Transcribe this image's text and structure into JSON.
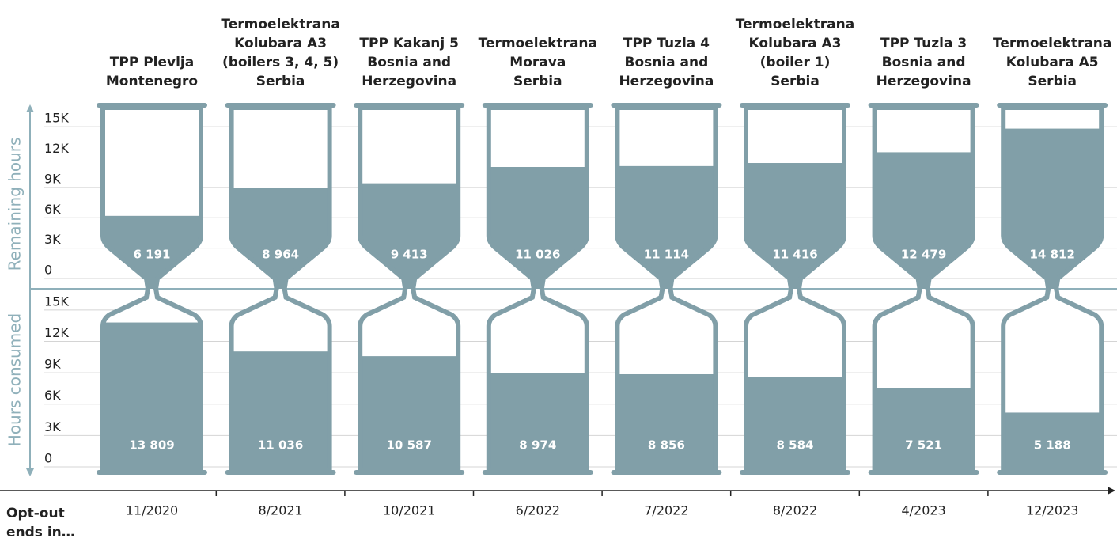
{
  "chart_data": {
    "type": "hourglass",
    "categories": [
      [
        "TPP Plevlja",
        "Montenegro"
      ],
      [
        "Termoelektrana",
        "Kolubara A3",
        "(boilers 3, 4, 5)",
        "Serbia"
      ],
      [
        "TPP Kakanj 5",
        "Bosnia and",
        "Herzegovina"
      ],
      [
        "Termoelektrana",
        "Morava",
        "Serbia"
      ],
      [
        "TPP Tuzla 4",
        "Bosnia and",
        "Herzegovina"
      ],
      [
        "Termoelektrana",
        "Kolubara A3",
        "(boiler 1)",
        "Serbia"
      ],
      [
        "TPP Tuzla 3",
        "Bosnia and",
        "Herzegovina"
      ],
      [
        "Termoelektrana",
        "Kolubara A5",
        "Serbia"
      ]
    ],
    "series": [
      {
        "name": "Remaining hours",
        "color": "#819fa8",
        "values": [
          6191,
          8964,
          9413,
          11026,
          11114,
          11416,
          12479,
          14812
        ],
        "value_labels": [
          "6 191",
          "8 964",
          "9 413",
          "11 026",
          "11 114",
          "11 416",
          "12 479",
          "14 812"
        ]
      },
      {
        "name": "Hours consumed",
        "color": "#819fa8",
        "axis": "y2",
        "values": [
          13809,
          11036,
          10587,
          8974,
          8856,
          8584,
          7521,
          5188
        ],
        "value_labels": [
          "13 809",
          "11 036",
          "10 587",
          "8 974",
          "8 856",
          "8 584",
          "7 521",
          "5 188"
        ]
      }
    ],
    "ylim": [
      0,
      16500
    ],
    "yticks": [
      0,
      {
        "value": 3000,
        "label": "3K"
      },
      {
        "value": 6000,
        "label": "6K"
      },
      {
        "value": 9000,
        "label": "9K"
      },
      {
        "value": 12000,
        "label": "12K"
      },
      {
        "value": 15000,
        "label": "15K"
      }
    ],
    "y2lim": [
      0,
      16500
    ],
    "y2ticks": [
      0,
      {
        "value": 3000,
        "label": "3K"
      },
      {
        "value": 6000,
        "label": "6K"
      },
      {
        "value": 9000,
        "label": "9K"
      },
      {
        "value": 12000,
        "label": "12K"
      },
      {
        "value": 15000,
        "label": "15K"
      }
    ],
    "x_label": [
      "Opt-out",
      "ends in…"
    ],
    "opt_out_ends": [
      "11/2020",
      "8/2021",
      "10/2021",
      "6/2022",
      "7/2022",
      "8/2022",
      "4/2023",
      "12/2023"
    ],
    "grid": true
  }
}
